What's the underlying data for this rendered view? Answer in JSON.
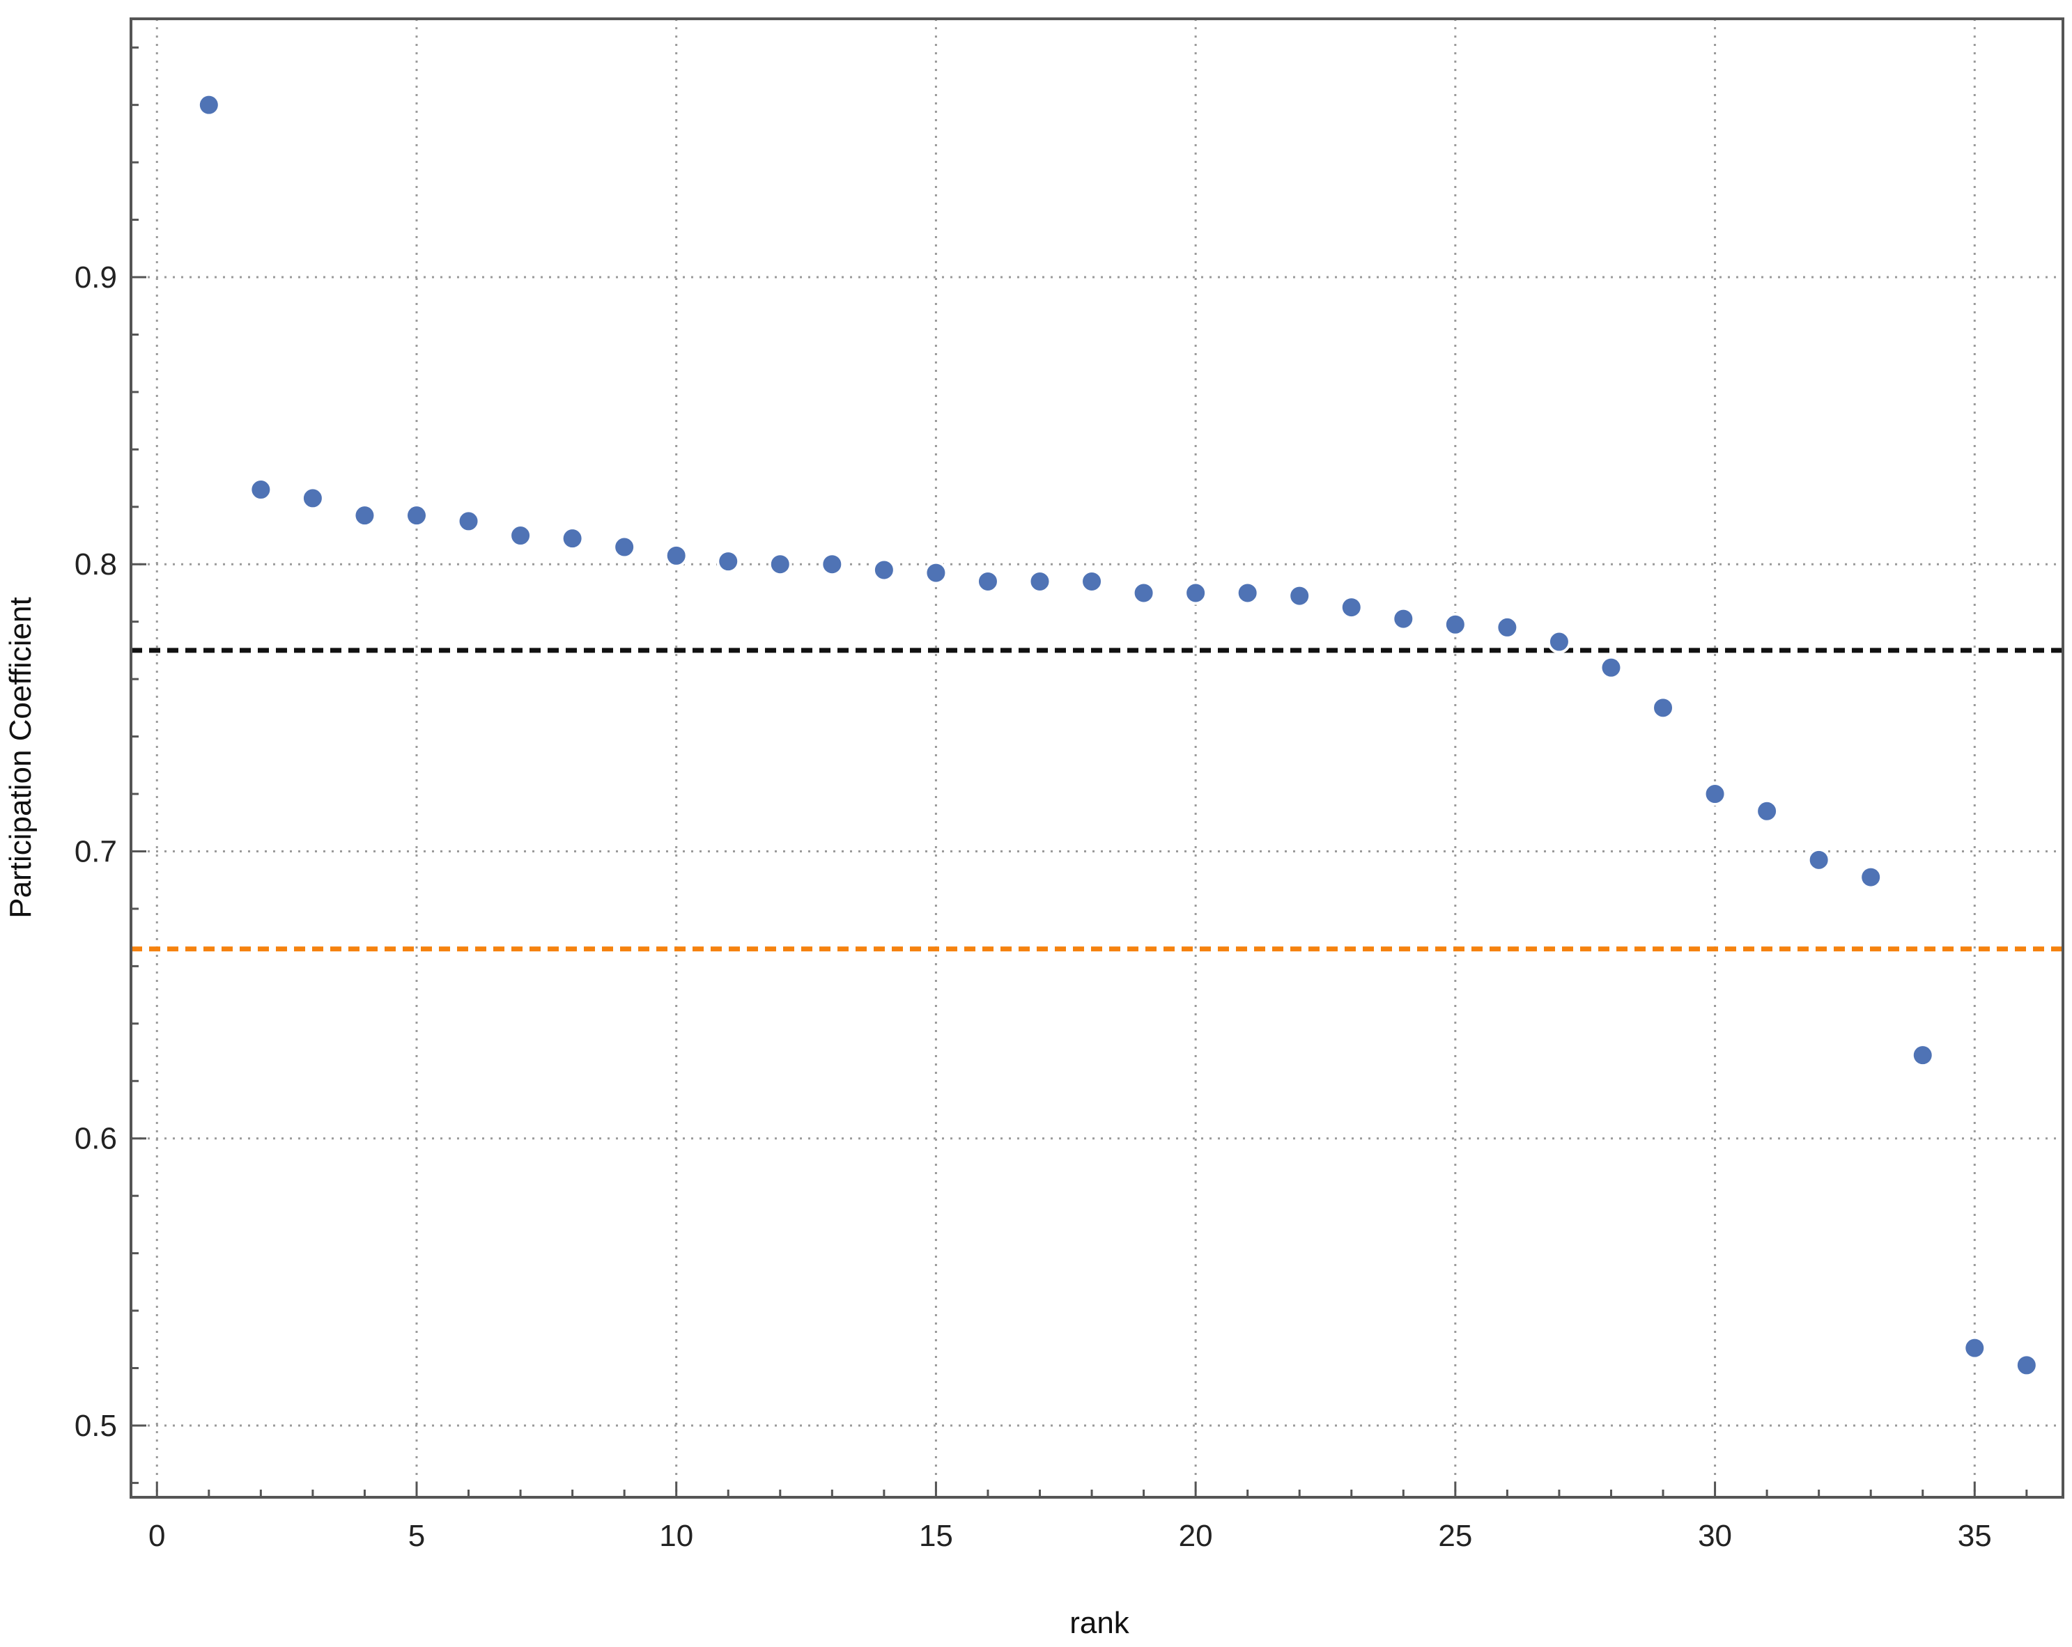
{
  "chart_data": {
    "type": "scatter",
    "title": "",
    "xlabel": "rank",
    "ylabel": "Participation Coefficient",
    "xlim": [
      -0.5,
      36.7
    ],
    "ylim": [
      0.475,
      0.99
    ],
    "grid": true,
    "x_ticks": [
      0,
      5,
      10,
      15,
      20,
      25,
      30,
      35
    ],
    "y_ticks": [
      0.5,
      0.6,
      0.7,
      0.8,
      0.9
    ],
    "x_tick_labels": [
      "0",
      "5",
      "10",
      "15",
      "20",
      "25",
      "30",
      "35"
    ],
    "y_tick_labels": [
      "0.5",
      "0.6",
      "0.7",
      "0.8",
      "0.9"
    ],
    "series": [
      {
        "color": "#4f73b5",
        "x": [
          1,
          2,
          3,
          4,
          5,
          6,
          7,
          8,
          9,
          10,
          11,
          12,
          13,
          14,
          15,
          16,
          17,
          18,
          19,
          20,
          21,
          22,
          23,
          24,
          25,
          26,
          27,
          28,
          29,
          30,
          31,
          32,
          33,
          34,
          35,
          36
        ],
        "y": [
          0.96,
          0.826,
          0.823,
          0.817,
          0.817,
          0.815,
          0.81,
          0.809,
          0.806,
          0.803,
          0.801,
          0.8,
          0.8,
          0.798,
          0.797,
          0.794,
          0.794,
          0.794,
          0.79,
          0.79,
          0.79,
          0.789,
          0.785,
          0.781,
          0.779,
          0.778,
          0.773,
          0.764,
          0.75,
          0.72,
          0.714,
          0.697,
          0.691,
          0.629,
          0.527,
          0.521
        ]
      }
    ],
    "reference_lines": [
      {
        "y": 0.77,
        "color": "#111111",
        "style": "dashed"
      },
      {
        "y": 0.666,
        "color": "#f5820f",
        "style": "dashed"
      }
    ]
  }
}
